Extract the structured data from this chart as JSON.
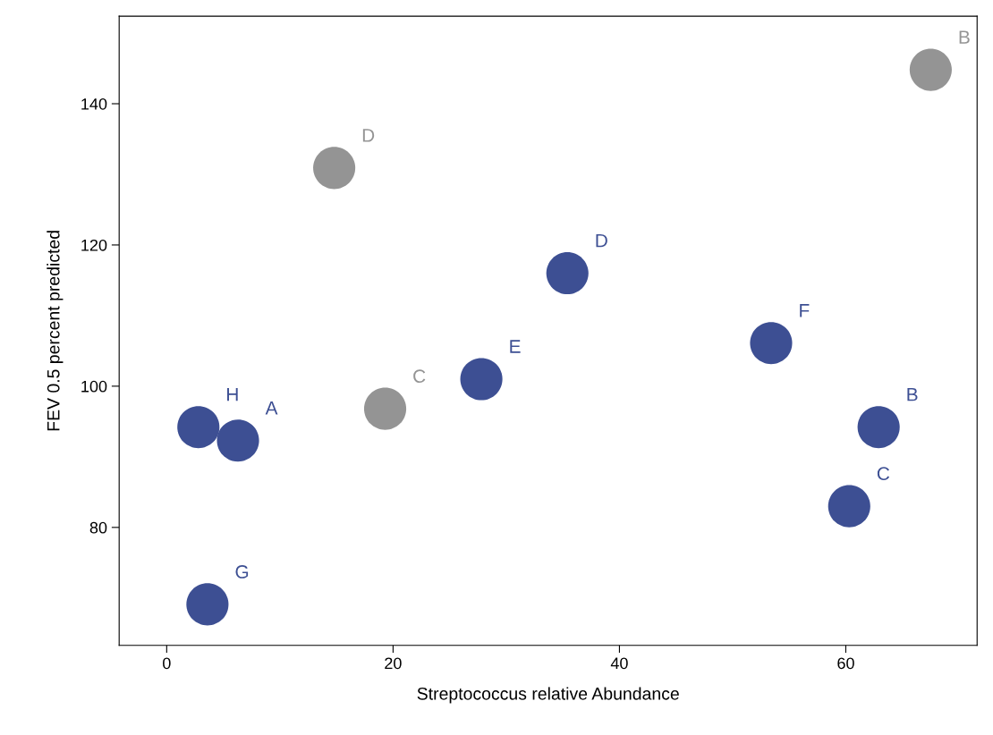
{
  "chart_data": {
    "type": "scatter",
    "xlabel": "Streptococcus relative Abundance",
    "ylabel": "FEV 0.5 percent predicted",
    "xlim": [
      -4.2,
      71.6
    ],
    "xticks": [
      0,
      20,
      40,
      60
    ],
    "ylim": [
      63.3,
      152.4
    ],
    "yticks": [
      80,
      100,
      120,
      140
    ],
    "grid": false,
    "legend": false,
    "marker": "circle",
    "series": [
      {
        "color": "#3d4f93",
        "x": [
          2.8,
          6.3,
          3.6,
          27.8,
          35.4,
          53.4,
          62.9,
          60.3
        ],
        "values": [
          94.2,
          92.3,
          69.1,
          101,
          116,
          106.1,
          94.2,
          83
        ],
        "value_labels": [
          "H",
          "A",
          "G",
          "E",
          "D",
          "F",
          "B",
          "C"
        ]
      },
      {
        "color": "#949494",
        "x": [
          14.8,
          19.3,
          67.5
        ],
        "values": [
          130.9,
          96.8,
          144.8
        ],
        "value_labels": [
          "D",
          "C",
          "B"
        ]
      }
    ]
  }
}
